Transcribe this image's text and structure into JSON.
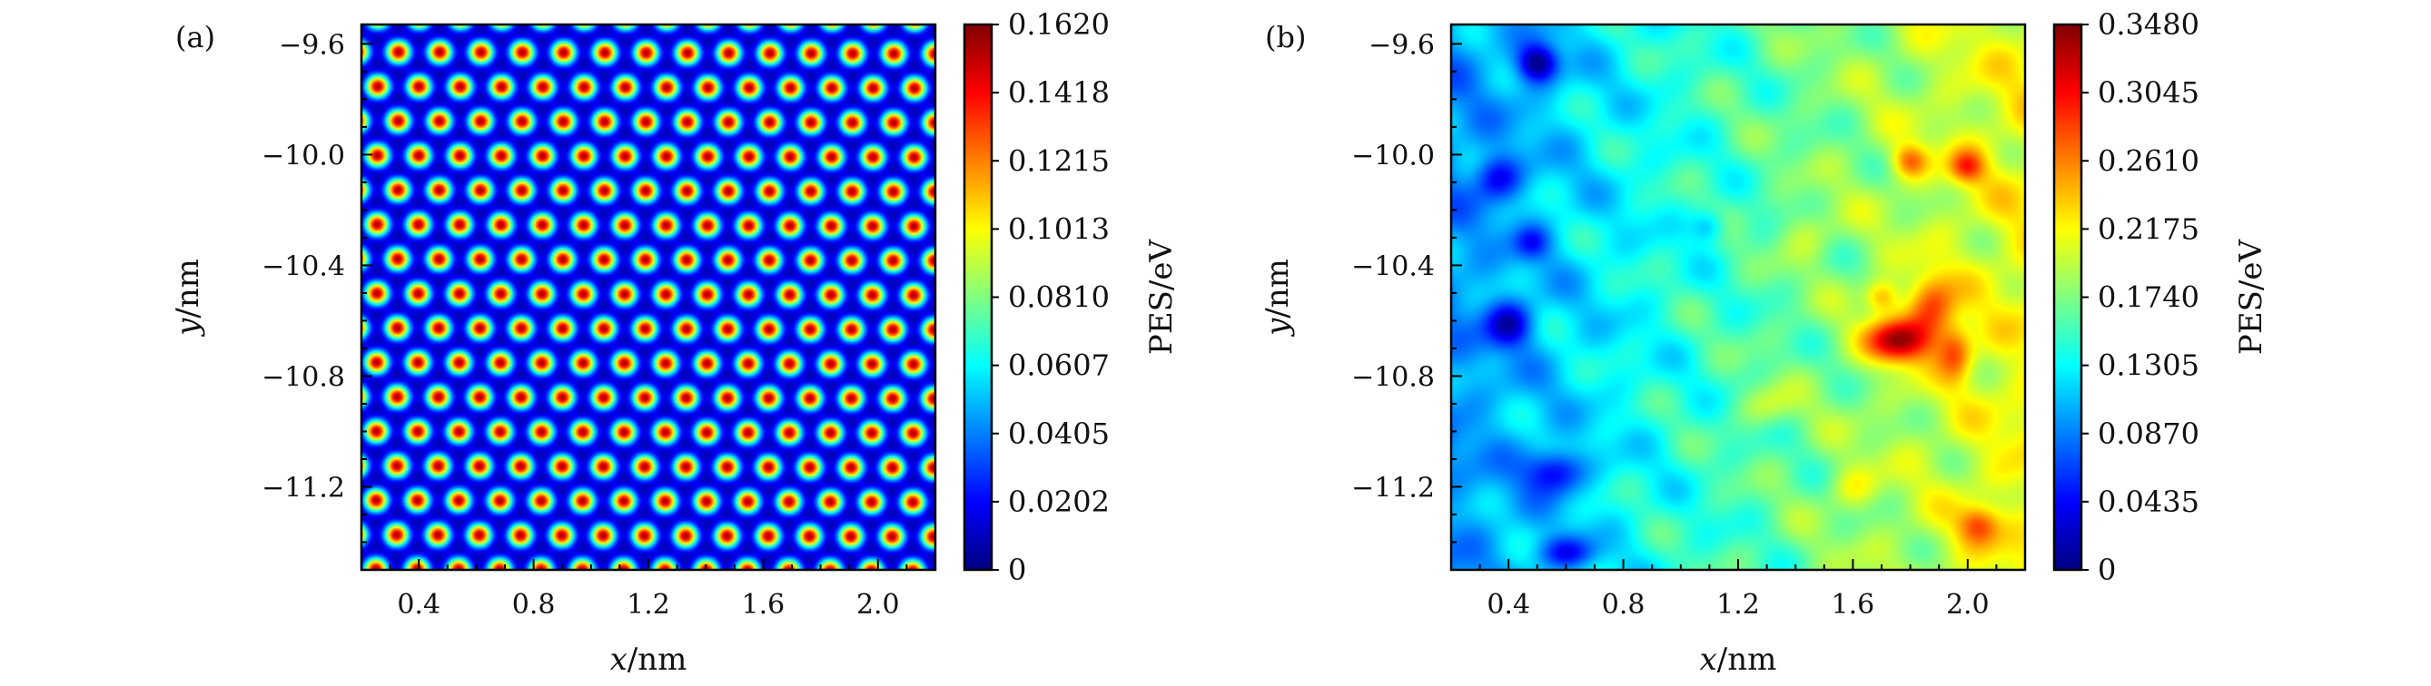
{
  "chart_data": [
    {
      "type": "heatmap",
      "panel_label": "(a)",
      "xlabel_var": "x",
      "xlabel_unit": "/nm",
      "ylabel_var": "y",
      "ylabel_unit": "/nm",
      "colorbar_label": "PES/eV",
      "xlim": [
        0.2,
        2.2
      ],
      "ylim": [
        -11.5,
        -9.53
      ],
      "x_ticks": [
        0.4,
        0.8,
        1.2,
        1.6,
        2.0
      ],
      "x_tick_labels": [
        "0.4",
        "0.8",
        "1.2",
        "1.6",
        "2.0"
      ],
      "y_ticks": [
        -9.6,
        -10.0,
        -10.4,
        -10.8,
        -11.2
      ],
      "y_tick_labels": [
        "−9.6",
        "−10.0",
        "−10.4",
        "−10.8",
        "−11.2"
      ],
      "colorbar_ticks": [
        "0.1620",
        "0.1418",
        "0.1215",
        "0.1013",
        "0.0810",
        "0.0607",
        "0.0405",
        "0.0202",
        "0"
      ],
      "colorbar_range": [
        0,
        0.162
      ],
      "colormap": "jet",
      "pattern": "periodic hexagonal lattice of energy maxima"
    },
    {
      "type": "heatmap",
      "panel_label": "(b)",
      "xlabel_var": "x",
      "xlabel_unit": "/nm",
      "ylabel_var": "y",
      "ylabel_unit": "/nm",
      "colorbar_label": "PES/eV",
      "xlim": [
        0.2,
        2.2
      ],
      "ylim": [
        -11.5,
        -9.53
      ],
      "x_ticks": [
        0.4,
        0.8,
        1.2,
        1.6,
        2.0
      ],
      "x_tick_labels": [
        "0.4",
        "0.8",
        "1.2",
        "1.6",
        "2.0"
      ],
      "y_ticks": [
        -9.6,
        -10.0,
        -10.4,
        -10.8,
        -11.2
      ],
      "y_tick_labels": [
        "−9.6",
        "−10.0",
        "−10.4",
        "−10.8",
        "−11.2"
      ],
      "colorbar_ticks": [
        "0.3480",
        "0.3045",
        "0.2610",
        "0.2175",
        "0.1740",
        "0.1305",
        "0.0870",
        "0.0435",
        "0"
      ],
      "colorbar_range": [
        0,
        0.348
      ],
      "colormap": "jet",
      "pattern": "disordered landscape, low energy on the left, highest energy near x = 2.0 nm, y = -10.45 nm"
    }
  ]
}
